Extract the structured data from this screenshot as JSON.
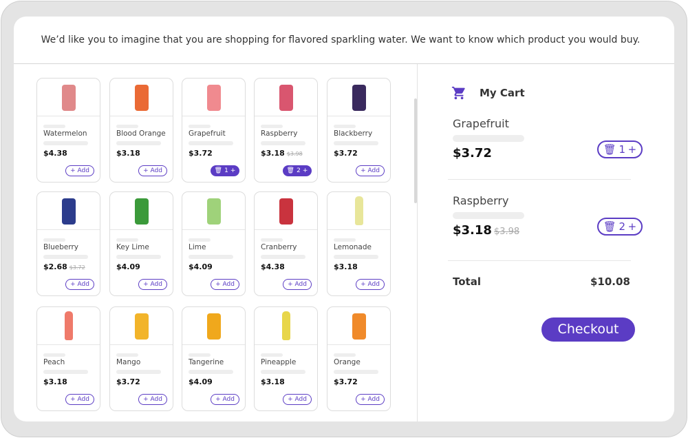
{
  "prompt": "We’d like you to imagine that you are shopping for flavored sparkling water. We want to know which product you would buy.",
  "accent": "#5b3cc4",
  "products": [
    {
      "name": "Watermelon",
      "price": "$4.38",
      "color": "#e0898a",
      "add": "+ Add"
    },
    {
      "name": "Blood Orange",
      "price": "$3.18",
      "color": "#ea6a35",
      "add": "+ Add"
    },
    {
      "name": "Grapefruit",
      "price": "$3.72",
      "color": "#f08a8f",
      "qty": "1"
    },
    {
      "name": "Raspberry",
      "price": "$3.18",
      "old": "$3.98",
      "color": "#d9566f",
      "qty": "2"
    },
    {
      "name": "Blackberry",
      "price": "$3.72",
      "color": "#3a2a5e",
      "add": "+ Add"
    },
    {
      "name": "Blueberry",
      "price": "$2.68",
      "old": "$3.72",
      "color": "#2c3c8c",
      "add": "+ Add"
    },
    {
      "name": "Key Lime",
      "price": "$4.09",
      "color": "#3b9a3a",
      "add": "+ Add"
    },
    {
      "name": "Lime",
      "price": "$4.09",
      "color": "#9fd27a",
      "add": "+ Add"
    },
    {
      "name": "Cranberry",
      "price": "$4.38",
      "color": "#c9333e",
      "add": "+ Add"
    },
    {
      "name": "Lemonade",
      "price": "$3.18",
      "color": "#e8e69a",
      "add": "+ Add",
      "bottle": true
    },
    {
      "name": "Peach",
      "price": "$3.18",
      "color": "#ef7a6a",
      "add": "+ Add",
      "bottle": true
    },
    {
      "name": "Mango",
      "price": "$3.72",
      "color": "#f2b42a",
      "add": "+ Add"
    },
    {
      "name": "Tangerine",
      "price": "$4.09",
      "color": "#f0a81c",
      "add": "+ Add"
    },
    {
      "name": "Pineapple",
      "price": "$3.18",
      "color": "#e8d64a",
      "add": "+ Add",
      "bottle": true
    },
    {
      "name": "Orange",
      "price": "$3.72",
      "color": "#f08a2a",
      "add": "+ Add"
    }
  ],
  "cart": {
    "title": "My Cart",
    "items": [
      {
        "name": "Grapefruit",
        "price": "$3.72",
        "qty": "1"
      },
      {
        "name": "Raspberry",
        "price": "$3.18",
        "old": "$3.98",
        "qty": "2"
      }
    ],
    "total_label": "Total",
    "total": "$10.08",
    "checkout": "Checkout"
  }
}
